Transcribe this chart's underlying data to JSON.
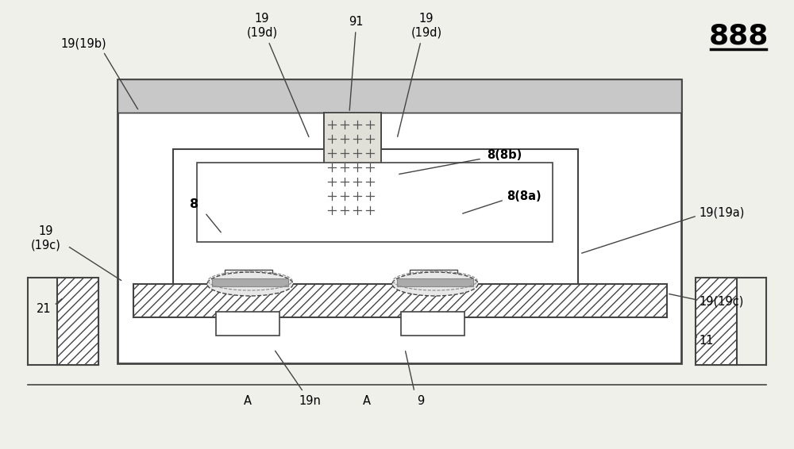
{
  "bg_color": "#f0f0ea",
  "line_color": "#444444",
  "fig_w": 10.0,
  "fig_h": 5.66,
  "dpi": 100,
  "title_number": "888",
  "labels": {
    "19_19b": "19(19b)",
    "19_19d_left": "19\n(19d)",
    "91": "91",
    "19_19d_right": "19\n(19d)",
    "8_8b": "8(8b)",
    "8": "8",
    "8_8a": "8(8a)",
    "19_19c_left": "19\n(19c)",
    "21": "21",
    "19_19a": "19(19a)",
    "19_19c_right": "19(19c)",
    "11": "11",
    "A_left": "A",
    "19n": "19n",
    "A_right": "A",
    "9": "9"
  }
}
